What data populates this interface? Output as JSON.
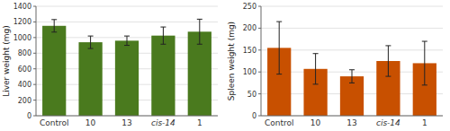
{
  "chart_data": [
    {
      "type": "bar",
      "ylabel": "Liver weight (mg)",
      "categories": [
        "Control",
        "10",
        "13",
        "cis-14",
        "1"
      ],
      "values": [
        1150,
        940,
        960,
        1025,
        1075
      ],
      "errors": [
        80,
        80,
        60,
        110,
        160
      ],
      "color": "#4a7a1e",
      "ylim": [
        0,
        1400
      ],
      "yticks": [
        0,
        200,
        400,
        600,
        800,
        1000,
        1200,
        1400
      ],
      "grid": true
    },
    {
      "type": "bar",
      "ylabel": "Spleen weight (mg)",
      "categories": [
        "Control",
        "10",
        "13",
        "cis-14",
        "1"
      ],
      "values": [
        155,
        107,
        90,
        125,
        120
      ],
      "errors": [
        60,
        35,
        15,
        35,
        50
      ],
      "color": "#c85000",
      "ylim": [
        0,
        250
      ],
      "yticks": [
        0,
        50,
        100,
        150,
        200,
        250
      ],
      "grid": true
    }
  ]
}
